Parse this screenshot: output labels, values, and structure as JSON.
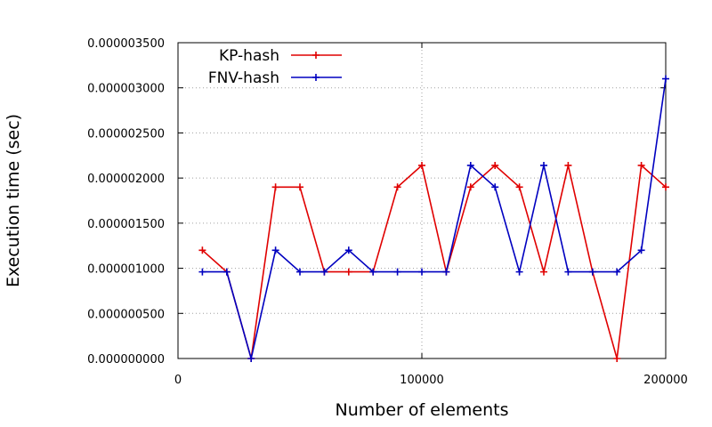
{
  "chart_data": {
    "type": "line",
    "xlabel": "Number of elements",
    "ylabel": "Execution time (sec)",
    "xlim": [
      0,
      200000
    ],
    "ylim": [
      0,
      3.5e-06
    ],
    "xticks": [
      0,
      100000,
      200000
    ],
    "xtick_labels": [
      "0",
      "100000",
      "200000"
    ],
    "yticks": [
      0,
      5e-07,
      1e-06,
      1.5e-06,
      2e-06,
      2.5e-06,
      3e-06,
      3.5e-06
    ],
    "ytick_labels": [
      "0.000000000",
      "0.000000500",
      "0.000001000",
      "0.000001500",
      "0.000002000",
      "0.000002500",
      "0.000003000",
      "0.000003500"
    ],
    "grid": true,
    "legend_position": "top-left",
    "x": [
      10000,
      20000,
      30000,
      40000,
      50000,
      60000,
      70000,
      80000,
      90000,
      100000,
      110000,
      120000,
      130000,
      140000,
      150000,
      160000,
      170000,
      180000,
      190000,
      200000
    ],
    "series": [
      {
        "name": "KP-hash",
        "color": "#e00000",
        "values": [
          1.2e-06,
          9.6e-07,
          0.0,
          1.9e-06,
          1.9e-06,
          9.6e-07,
          9.6e-07,
          9.6e-07,
          1.9e-06,
          2.14e-06,
          9.6e-07,
          1.9e-06,
          2.14e-06,
          1.9e-06,
          9.6e-07,
          2.14e-06,
          9.6e-07,
          0.0,
          2.14e-06,
          1.9e-06
        ]
      },
      {
        "name": "FNV-hash",
        "color": "#0000c0",
        "values": [
          9.6e-07,
          9.6e-07,
          0.0,
          1.2e-06,
          9.6e-07,
          9.6e-07,
          1.2e-06,
          9.6e-07,
          9.6e-07,
          9.6e-07,
          9.6e-07,
          2.14e-06,
          1.9e-06,
          9.6e-07,
          2.14e-06,
          9.6e-07,
          9.6e-07,
          9.6e-07,
          1.2e-06,
          3.1e-06
        ]
      }
    ]
  }
}
